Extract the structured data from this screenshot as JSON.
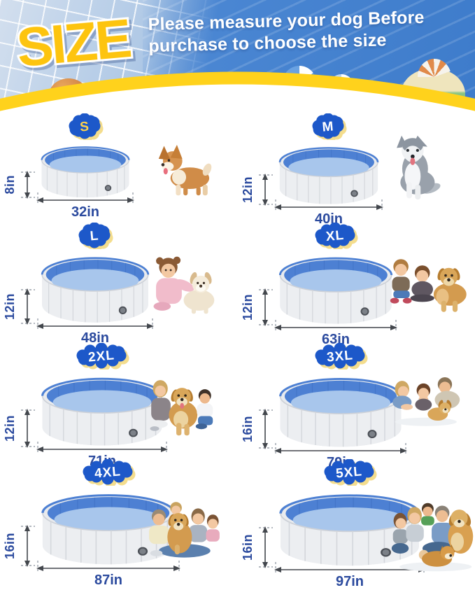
{
  "header": {
    "size_word": "SIZE",
    "tagline_line1": "Please measure your dog Before",
    "tagline_line2": "purchase to choose the size"
  },
  "colors": {
    "banner_yellow": "#ffd21c",
    "size_word_fill": "#fdc40f",
    "badge_blue": "#1d58c9",
    "badge_shadow": "#f4dd8d",
    "dimension_text": "#2b4a9e",
    "pool_inner_blue": "#4d80d3",
    "pool_water_blue": "#a8c6ec",
    "pool_wall_gray": "#e9ebee"
  },
  "sizes": [
    {
      "label": "S",
      "height": "8in",
      "width": "32in",
      "letter_color": "#ffd24a",
      "photo": "corgi-dog",
      "photo_desc": "Corgi dog standing"
    },
    {
      "label": "M",
      "height": "12in",
      "width": "40in",
      "letter_color": "#ffffff",
      "photo": "husky-dog",
      "photo_desc": "Husky dog sitting"
    },
    {
      "label": "L",
      "height": "12in",
      "width": "48in",
      "letter_color": "#ffffff",
      "photo": "girl-with-white-puppy",
      "photo_desc": "Little girl hugging a white puppy"
    },
    {
      "label": "XL",
      "height": "12in",
      "width": "63in",
      "letter_color": "#ffffff",
      "photo": "two-kids-with-golden-retriever",
      "photo_desc": "Toddler and girl with golden retriever"
    },
    {
      "label": "2XL",
      "height": "12in",
      "width": "71in",
      "letter_color": "#ffffff",
      "photo": "woman-boy-with-golden-retriever",
      "photo_desc": "Woman and boy with golden retriever"
    },
    {
      "label": "3XL",
      "height": "16in",
      "width": "79in",
      "letter_color": "#ffffff",
      "photo": "family-with-golden-puppy",
      "photo_desc": "Family lying down with golden puppy"
    },
    {
      "label": "4XL",
      "height": "16in",
      "width": "87in",
      "letter_color": "#ffffff",
      "photo": "family-sitting-with-golden-retriever",
      "photo_desc": "Family of four sitting with golden retriever"
    },
    {
      "label": "5XL",
      "height": "16in",
      "width": "97in",
      "letter_color": "#ffffff",
      "photo": "family-with-two-dogs",
      "photo_desc": "Family of four with golden retriever and small dog"
    }
  ]
}
